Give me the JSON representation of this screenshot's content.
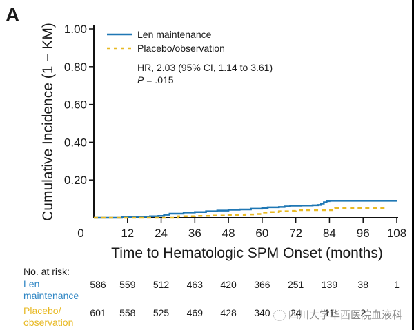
{
  "panel_label": "A",
  "chart_data": {
    "type": "line",
    "title": "",
    "xlabel": "Time to Hematologic SPM Onset (months)",
    "ylabel": "Cumulative Incidence (1 − KM)",
    "xlim": [
      0,
      108
    ],
    "ylim": [
      0,
      1.0
    ],
    "xticks": [
      0,
      12,
      24,
      36,
      48,
      60,
      72,
      84,
      96,
      108
    ],
    "xtick_labels": [
      "0",
      "12",
      "24",
      "36",
      "48",
      "60",
      "72",
      "84",
      "96",
      "108"
    ],
    "yticks": [
      0.2,
      0.4,
      0.6,
      0.8,
      1.0
    ],
    "ytick_labels": [
      "0.20",
      "0.40",
      "0.60",
      "0.80",
      "1.00"
    ],
    "grid": false,
    "legend_position": "top-left",
    "series": [
      {
        "name": "Len maintenance",
        "color": "#1f77b4",
        "style": "solid",
        "x": [
          0,
          6,
          10,
          14,
          20,
          23,
          25,
          27,
          32,
          36,
          40,
          44,
          48,
          52,
          56,
          60,
          62,
          66,
          68,
          70,
          74,
          78,
          80,
          81,
          82,
          83,
          84,
          90,
          96,
          100,
          108
        ],
        "y": [
          0,
          0,
          0.003,
          0.005,
          0.008,
          0.01,
          0.016,
          0.022,
          0.028,
          0.03,
          0.034,
          0.038,
          0.042,
          0.044,
          0.048,
          0.05,
          0.055,
          0.057,
          0.06,
          0.064,
          0.065,
          0.066,
          0.068,
          0.075,
          0.082,
          0.088,
          0.09,
          0.09,
          0.09,
          0.09,
          0.09
        ]
      },
      {
        "name": "Placebo/observation",
        "color": "#e8b923",
        "style": "dashed",
        "x": [
          0,
          24,
          30,
          36,
          42,
          48,
          54,
          58,
          60,
          62,
          66,
          70,
          72,
          76,
          80,
          84,
          86,
          90,
          96,
          100,
          104
        ],
        "y": [
          0,
          0,
          0.008,
          0.01,
          0.012,
          0.015,
          0.018,
          0.02,
          0.028,
          0.03,
          0.034,
          0.036,
          0.04,
          0.04,
          0.04,
          0.04,
          0.05,
          0.05,
          0.05,
          0.05,
          0.05
        ]
      }
    ],
    "annotations": [
      "HR, 2.03 (95% CI, 1.14 to 3.61)",
      "P = .015"
    ]
  },
  "legend": {
    "items": [
      {
        "label": "Len maintenance",
        "color": "#1f77b4"
      },
      {
        "label": "Placebo/observation",
        "color": "#e8b923"
      }
    ],
    "hr_text": "HR, 2.03 (95% CI, 1.14 to 3.61)",
    "p_label": "P",
    "p_value": "  = .015"
  },
  "risk_table": {
    "header": "No. at risk:",
    "rows": [
      {
        "label_line1": "Len",
        "label_line2": "maintenance",
        "color": "#2f86c4",
        "values": [
          "586",
          "559",
          "512",
          "463",
          "420",
          "366",
          "251",
          "139",
          "38",
          "1"
        ]
      },
      {
        "label_line1": "Placebo/",
        "label_line2": "observation",
        "color": "#e8b923",
        "values": [
          "601",
          "558",
          "525",
          "469",
          "428",
          "340",
          "24",
          "11",
          "2",
          ""
        ]
      }
    ]
  },
  "watermark": "四川大学华西医院血液科"
}
